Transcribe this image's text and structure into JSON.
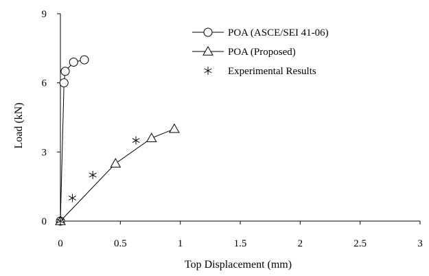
{
  "chart_data": {
    "type": "line",
    "title": "",
    "xlabel": "Top Displacement (mm)",
    "ylabel": "Load (kN)",
    "xlim": [
      0,
      3
    ],
    "ylim": [
      0,
      9
    ],
    "xticks": [
      0,
      0.5,
      1,
      1.5,
      2,
      2.5,
      3
    ],
    "xtick_labels": [
      "0",
      "0.5",
      "1",
      "1.5",
      "2",
      "2.5",
      "3"
    ],
    "yticks": [
      0,
      3,
      6,
      9
    ],
    "ytick_labels": [
      "0",
      "3",
      "6",
      "9"
    ],
    "grid": false,
    "legend_position": "top-right",
    "series": [
      {
        "name": "POA (ASCE/SEI 41-06)",
        "marker": "circle",
        "line": true,
        "x": [
          0,
          0.03,
          0.04,
          0.11,
          0.2
        ],
        "y": [
          0,
          6.0,
          6.5,
          6.9,
          7.0
        ]
      },
      {
        "name": "POA (Proposed)",
        "marker": "triangle",
        "line": true,
        "x": [
          0,
          0.46,
          0.76,
          0.95
        ],
        "y": [
          0,
          2.5,
          3.6,
          4.0
        ]
      },
      {
        "name": "Experimental Results",
        "marker": "star",
        "line": false,
        "x": [
          0,
          0.1,
          0.27,
          0.63
        ],
        "y": [
          0,
          1.0,
          2.0,
          3.5
        ]
      }
    ]
  }
}
